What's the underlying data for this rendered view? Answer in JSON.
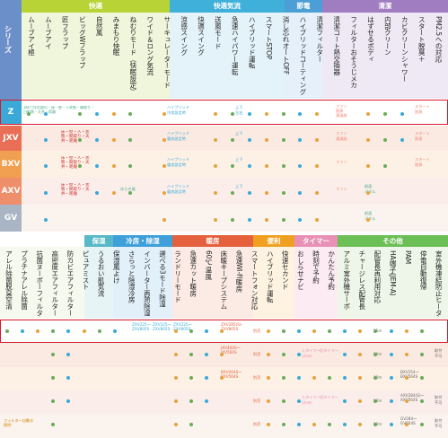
{
  "series_label": "シリーズ",
  "groups_top": [
    "快適",
    "快適気流",
    "節電",
    "清潔"
  ],
  "columns_top": [
    "ムーブアイ極",
    "ムーブアイ",
    "匠フラップ",
    "ビッグWフラップ",
    "自然風",
    "みまもり快眠",
    "ねむりモード（快眠設定）",
    "ワイド＆ロング気流",
    "サーキュレーターモード",
    "涼感スイング",
    "快適スイング",
    "送風モード",
    "急速ハイパワー運転",
    "ハイブリッド運転",
    "スマートSTOP",
    "消し忘れオートOFF",
    "ハイブリッドコーティング",
    "清潔フィルター",
    "清潔コート熱交換器",
    "フィルターおそうじメカ",
    "はずせるボディ",
    "内部クリーン",
    "カビクリーンシャワー",
    "スタート脱臭＋",
    "PM2.5への対応"
  ],
  "rows_top": [
    "Z",
    "JXV",
    "BXV",
    "AXV",
    "GV"
  ],
  "z_model_note": "360°/冷の部位・床・壁・人状態・間取り・日射熱・天井・距離",
  "row_notes_top": [
    "床・壁・人・状態・間取り・天井・距離",
    "床・壁・人・状態・間取り・天井・距離",
    "床・壁・人・状態・間取り・天井・距離"
  ],
  "cell_labels": {
    "hybrid": "ハイブリッド",
    "hybrid_heat": "暖房設定時",
    "hybrid_cool": "冷房設定時",
    "updown": "上下",
    "leftright": "左右",
    "fan_label": "ファン",
    "fan_clean": "ファン",
    "fan_deodor": "脱臭",
    "fan_sub": "通風路",
    "start_deodor": "スタート",
    "start_sub": "脱臭",
    "front_panel": "前面",
    "front_panel_sub": "パネル",
    "jump": "ゆらぎ風"
  },
  "groups_bottom": [
    "保湿",
    "冷房・除湿",
    "暖房",
    "便利",
    "タイマー",
    "その他"
  ],
  "columns_bottom": [
    "アレル除菌脱臭空清",
    "プラチナアレル除菌",
    "抗菌ヌーボーフィルター",
    "高密度エアフィルター",
    "防カビエアフィルター",
    "ピュアミスト",
    "うるおい肌気流",
    "保湿風よけ",
    "さらっと除湿冷房",
    "インバーター再熱除湿",
    "選べる3モード除湿",
    "ランドリーモード",
    "急速カット暖房",
    "60℃温風",
    "床暖キープシステム",
    "急速Wi-Fi暖房",
    "スマートフォン対応",
    "ハイブリッド運転",
    "快速セカンド",
    "おしらせナビ",
    "時刻で予約",
    "かんたん予約",
    "アルミ室外機サーボ",
    "チャージレス配管長",
    "配管長再利用対応",
    "HA端子(JEM-A)",
    "PAM",
    "停電自動復帰",
    "室外機凍結防止ヒーター"
  ],
  "model_texts": [
    "ZXV225〜ZXV805S",
    "ZXV225〜ZXV805S",
    "ZXV225〜ZXV805S",
    "ZXV285(S)〜ZXV805S"
  ],
  "jxv_text": "JXV404S〜JXV564S",
  "bxv_text": "BXV404S〜BXV564S",
  "betsubai": "別売",
  "timer_note": "入タイマー",
  "timer_note2": "(のみ)",
  "timer_note3": "切タイマー",
  "len15": "15m",
  "len10": "10m",
  "tori": "取付",
  "tori2": "不可",
  "bxv_ext": "BXV254〜BXV564S",
  "axv_ext": "AXV284(S)〜AXV564S",
  "gv_ext": "GV284〜GV564S",
  "filter_note": "フィルター自動お掃除"
}
